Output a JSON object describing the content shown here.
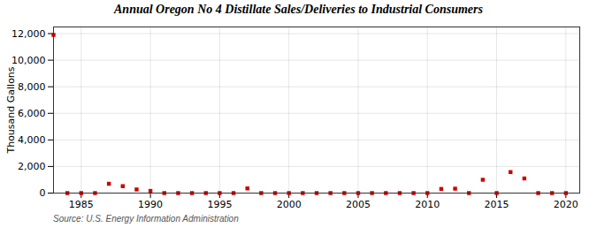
{
  "chart_data": {
    "type": "scatter",
    "title": "Annual Oregon No 4 Distillate Sales/Deliveries to Industrial Consumers",
    "ylabel": "Thousand Gallons",
    "source": "Source: U.S. Energy Information Administration",
    "x": [
      1983,
      1984,
      1985,
      1986,
      1987,
      1988,
      1989,
      1990,
      1991,
      1992,
      1993,
      1994,
      1995,
      1996,
      1997,
      1998,
      1999,
      2000,
      2001,
      2002,
      2003,
      2004,
      2005,
      2006,
      2007,
      2008,
      2009,
      2010,
      2011,
      2012,
      2013,
      2014,
      2015,
      2016,
      2017,
      2018,
      2019,
      2020
    ],
    "values": [
      11900,
      0,
      0,
      0,
      700,
      520,
      270,
      160,
      0,
      0,
      0,
      0,
      0,
      0,
      350,
      0,
      0,
      0,
      0,
      0,
      0,
      0,
      0,
      0,
      0,
      0,
      0,
      0,
      310,
      330,
      0,
      1000,
      0,
      1580,
      1100,
      0,
      0,
      0
    ],
    "color": "#cc0000",
    "marker": "square",
    "xlim": [
      1983,
      2021
    ],
    "xticks": [
      1985,
      1990,
      1995,
      2000,
      2005,
      2010,
      2015,
      2020
    ],
    "ylim": [
      0,
      12500
    ],
    "yticks": [
      0,
      {
        "value": 2000,
        "label": "2,000"
      },
      {
        "value": 4000,
        "label": "4,000"
      },
      {
        "value": 6000,
        "label": "6,000"
      },
      {
        "value": 8000,
        "label": "8,000"
      },
      {
        "value": 10000,
        "label": "10,000"
      },
      {
        "value": 12000,
        "label": "12,000"
      }
    ],
    "grid": true
  }
}
